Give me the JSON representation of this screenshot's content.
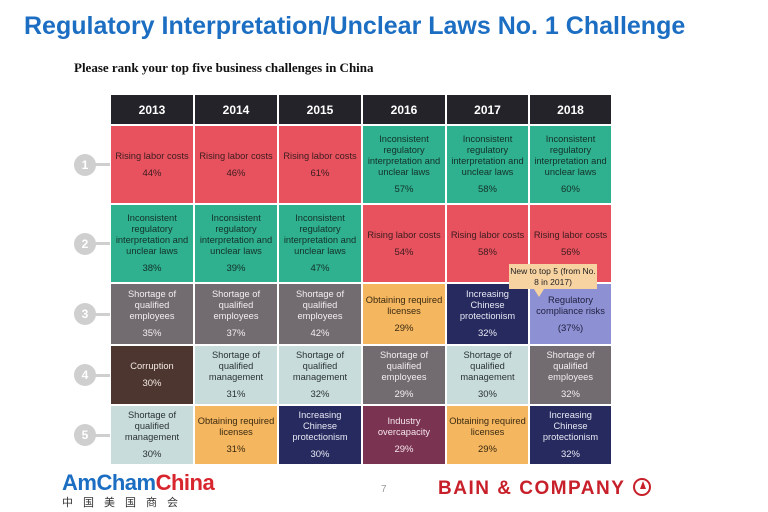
{
  "title": "Regulatory Interpretation/Unclear Laws No. 1 Challenge",
  "subtitle": "Please rank your top five business challenges in China",
  "years": [
    "2013",
    "2014",
    "2015",
    "2016",
    "2017",
    "2018"
  ],
  "ranks": [
    "1",
    "2",
    "3",
    "4",
    "5"
  ],
  "colors": {
    "labor": "#e8525f",
    "regulatory": "#2fb08e",
    "employees": "#726b70",
    "licenses": "#f5b660",
    "protectionism": "#262a5e",
    "compliance": "#8d90d2",
    "corruption": "#4e3630",
    "management": "#c9dcdc",
    "overcapacity": "#7b3352"
  },
  "rows": [
    [
      {
        "label": "Rising labor costs",
        "pct": "44%",
        "cat": "labor"
      },
      {
        "label": "Rising labor costs",
        "pct": "46%",
        "cat": "labor"
      },
      {
        "label": "Rising labor costs",
        "pct": "61%",
        "cat": "labor"
      },
      {
        "label": "Inconsistent regulatory interpretation and unclear laws",
        "pct": "57%",
        "cat": "regulatory"
      },
      {
        "label": "Inconsistent regulatory interpretation and unclear laws",
        "pct": "58%",
        "cat": "regulatory"
      },
      {
        "label": "Inconsistent regulatory interpretation and unclear laws",
        "pct": "60%",
        "cat": "regulatory"
      }
    ],
    [
      {
        "label": "Inconsistent regulatory interpretation and unclear laws",
        "pct": "38%",
        "cat": "regulatory"
      },
      {
        "label": "Inconsistent regulatory interpretation and unclear laws",
        "pct": "39%",
        "cat": "regulatory"
      },
      {
        "label": "Inconsistent regulatory interpretation and unclear laws",
        "pct": "47%",
        "cat": "regulatory"
      },
      {
        "label": "Rising labor costs",
        "pct": "54%",
        "cat": "labor"
      },
      {
        "label": "Rising labor costs",
        "pct": "58%",
        "cat": "labor"
      },
      {
        "label": "Rising labor costs",
        "pct": "56%",
        "cat": "labor"
      }
    ],
    [
      {
        "label": "Shortage of qualified employees",
        "pct": "35%",
        "cat": "employees"
      },
      {
        "label": "Shortage of qualified employees",
        "pct": "37%",
        "cat": "employees"
      },
      {
        "label": "Shortage of qualified employees",
        "pct": "42%",
        "cat": "employees"
      },
      {
        "label": "Obtaining required licenses",
        "pct": "29%",
        "cat": "licenses"
      },
      {
        "label": "Increasing Chinese protectionism",
        "pct": "32%",
        "cat": "protectionism"
      },
      {
        "label": "Regulatory compliance risks",
        "pct": "(37%)",
        "cat": "compliance"
      }
    ],
    [
      {
        "label": "Corruption",
        "pct": "30%",
        "cat": "corruption"
      },
      {
        "label": "Shortage of qualified management",
        "pct": "31%",
        "cat": "management"
      },
      {
        "label": "Shortage of qualified management",
        "pct": "32%",
        "cat": "management"
      },
      {
        "label": "Shortage of qualified employees",
        "pct": "29%",
        "cat": "employees"
      },
      {
        "label": "Shortage of qualified management",
        "pct": "30%",
        "cat": "management"
      },
      {
        "label": "Shortage of qualified employees",
        "pct": "32%",
        "cat": "employees"
      }
    ],
    [
      {
        "label": "Shortage of qualified management",
        "pct": "30%",
        "cat": "management"
      },
      {
        "label": "Obtaining required licenses",
        "pct": "31%",
        "cat": "licenses"
      },
      {
        "label": "Increasing Chinese protectionism",
        "pct": "30%",
        "cat": "protectionism"
      },
      {
        "label": "Industry overcapacity",
        "pct": "29%",
        "cat": "overcapacity"
      },
      {
        "label": "Obtaining required licenses",
        "pct": "29%",
        "cat": "licenses"
      },
      {
        "label": "Increasing Chinese protectionism",
        "pct": "32%",
        "cat": "protectionism"
      }
    ]
  ],
  "callout": "New to top 5 (from No. 8 in 2017)",
  "footer": {
    "amcham_a": "AmCham",
    "amcham_c": "China",
    "amcham_cn": "中国美国商会",
    "page": "7",
    "bain": "BAIN & COMPANY"
  }
}
